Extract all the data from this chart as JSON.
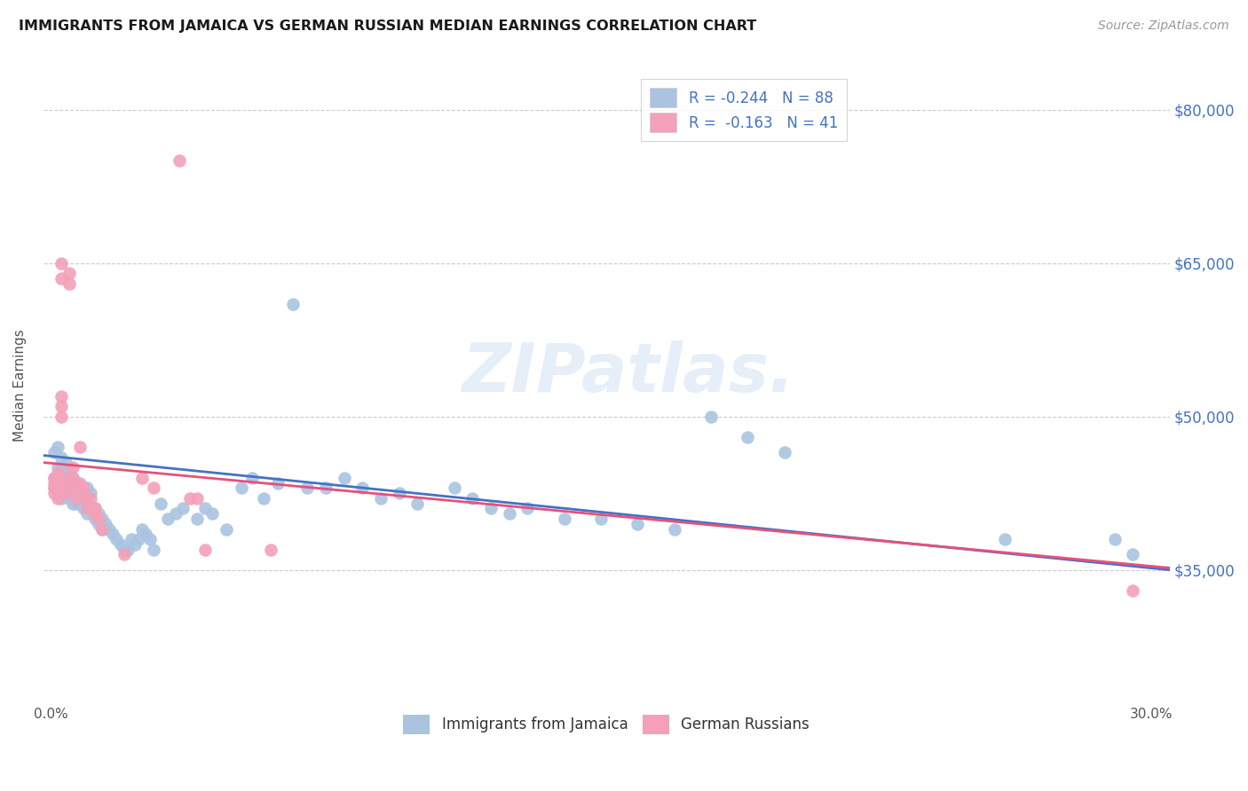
{
  "title": "IMMIGRANTS FROM JAMAICA VS GERMAN RUSSIAN MEDIAN EARNINGS CORRELATION CHART",
  "source": "Source: ZipAtlas.com",
  "ylabel": "Median Earnings",
  "y_ticks": [
    35000,
    50000,
    65000,
    80000
  ],
  "y_tick_labels": [
    "$35,000",
    "$50,000",
    "$65,000",
    "$80,000"
  ],
  "y_min": 22000,
  "y_max": 84000,
  "x_min": -0.002,
  "x_max": 0.305,
  "legend_labels_bottom": [
    "Immigrants from Jamaica",
    "German Russians"
  ],
  "blue_color": "#aac4e0",
  "pink_color": "#f4a0b8",
  "trend_blue": "#4472c4",
  "trend_pink": "#e8507a",
  "watermark": "ZIPatlas.",
  "blue_trend_x": [
    -0.002,
    0.305
  ],
  "blue_trend_y": [
    46200,
    35000
  ],
  "pink_trend_x": [
    -0.002,
    0.305
  ],
  "pink_trend_y": [
    45500,
    35200
  ],
  "blue_scatter": [
    [
      0.001,
      46500
    ],
    [
      0.001,
      44000
    ],
    [
      0.001,
      43000
    ],
    [
      0.002,
      47000
    ],
    [
      0.002,
      45000
    ],
    [
      0.002,
      44000
    ],
    [
      0.002,
      43500
    ],
    [
      0.003,
      46000
    ],
    [
      0.003,
      45000
    ],
    [
      0.003,
      44500
    ],
    [
      0.003,
      43000
    ],
    [
      0.003,
      42000
    ],
    [
      0.004,
      45500
    ],
    [
      0.004,
      44000
    ],
    [
      0.004,
      43000
    ],
    [
      0.004,
      42500
    ],
    [
      0.005,
      44500
    ],
    [
      0.005,
      43500
    ],
    [
      0.005,
      43000
    ],
    [
      0.005,
      42000
    ],
    [
      0.006,
      44000
    ],
    [
      0.006,
      43000
    ],
    [
      0.006,
      42000
    ],
    [
      0.006,
      41500
    ],
    [
      0.007,
      43500
    ],
    [
      0.007,
      42500
    ],
    [
      0.007,
      41500
    ],
    [
      0.008,
      43000
    ],
    [
      0.008,
      42000
    ],
    [
      0.009,
      42000
    ],
    [
      0.009,
      41000
    ],
    [
      0.01,
      43000
    ],
    [
      0.01,
      41500
    ],
    [
      0.01,
      40500
    ],
    [
      0.011,
      42500
    ],
    [
      0.011,
      41000
    ],
    [
      0.012,
      41000
    ],
    [
      0.012,
      40000
    ],
    [
      0.013,
      40500
    ],
    [
      0.013,
      39500
    ],
    [
      0.014,
      40000
    ],
    [
      0.014,
      39000
    ],
    [
      0.015,
      39500
    ],
    [
      0.016,
      39000
    ],
    [
      0.017,
      38500
    ],
    [
      0.018,
      38000
    ],
    [
      0.019,
      37500
    ],
    [
      0.02,
      37000
    ],
    [
      0.021,
      37000
    ],
    [
      0.022,
      38000
    ],
    [
      0.023,
      37500
    ],
    [
      0.024,
      38000
    ],
    [
      0.025,
      39000
    ],
    [
      0.026,
      38500
    ],
    [
      0.027,
      38000
    ],
    [
      0.028,
      37000
    ],
    [
      0.03,
      41500
    ],
    [
      0.032,
      40000
    ],
    [
      0.034,
      40500
    ],
    [
      0.036,
      41000
    ],
    [
      0.04,
      40000
    ],
    [
      0.042,
      41000
    ],
    [
      0.044,
      40500
    ],
    [
      0.048,
      39000
    ],
    [
      0.052,
      43000
    ],
    [
      0.055,
      44000
    ],
    [
      0.058,
      42000
    ],
    [
      0.062,
      43500
    ],
    [
      0.066,
      61000
    ],
    [
      0.07,
      43000
    ],
    [
      0.075,
      43000
    ],
    [
      0.08,
      44000
    ],
    [
      0.085,
      43000
    ],
    [
      0.09,
      42000
    ],
    [
      0.095,
      42500
    ],
    [
      0.1,
      41500
    ],
    [
      0.11,
      43000
    ],
    [
      0.115,
      42000
    ],
    [
      0.12,
      41000
    ],
    [
      0.125,
      40500
    ],
    [
      0.13,
      41000
    ],
    [
      0.14,
      40000
    ],
    [
      0.15,
      40000
    ],
    [
      0.16,
      39500
    ],
    [
      0.17,
      39000
    ],
    [
      0.18,
      50000
    ],
    [
      0.19,
      48000
    ],
    [
      0.2,
      46500
    ],
    [
      0.26,
      38000
    ],
    [
      0.29,
      38000
    ],
    [
      0.295,
      36500
    ]
  ],
  "pink_scatter": [
    [
      0.001,
      44000
    ],
    [
      0.001,
      43500
    ],
    [
      0.001,
      43000
    ],
    [
      0.001,
      42500
    ],
    [
      0.002,
      44500
    ],
    [
      0.002,
      44000
    ],
    [
      0.002,
      43000
    ],
    [
      0.002,
      42000
    ],
    [
      0.003,
      65000
    ],
    [
      0.003,
      63500
    ],
    [
      0.003,
      52000
    ],
    [
      0.003,
      51000
    ],
    [
      0.003,
      50000
    ],
    [
      0.004,
      44000
    ],
    [
      0.004,
      43500
    ],
    [
      0.004,
      42500
    ],
    [
      0.005,
      64000
    ],
    [
      0.005,
      63000
    ],
    [
      0.006,
      45000
    ],
    [
      0.006,
      44000
    ],
    [
      0.007,
      43000
    ],
    [
      0.007,
      42000
    ],
    [
      0.008,
      47000
    ],
    [
      0.008,
      43500
    ],
    [
      0.009,
      43000
    ],
    [
      0.01,
      42000
    ],
    [
      0.01,
      41000
    ],
    [
      0.011,
      42000
    ],
    [
      0.012,
      41000
    ],
    [
      0.012,
      40500
    ],
    [
      0.013,
      40000
    ],
    [
      0.014,
      39000
    ],
    [
      0.02,
      36500
    ],
    [
      0.025,
      44000
    ],
    [
      0.028,
      43000
    ],
    [
      0.035,
      75000
    ],
    [
      0.038,
      42000
    ],
    [
      0.04,
      42000
    ],
    [
      0.042,
      37000
    ],
    [
      0.06,
      37000
    ],
    [
      0.295,
      33000
    ]
  ]
}
